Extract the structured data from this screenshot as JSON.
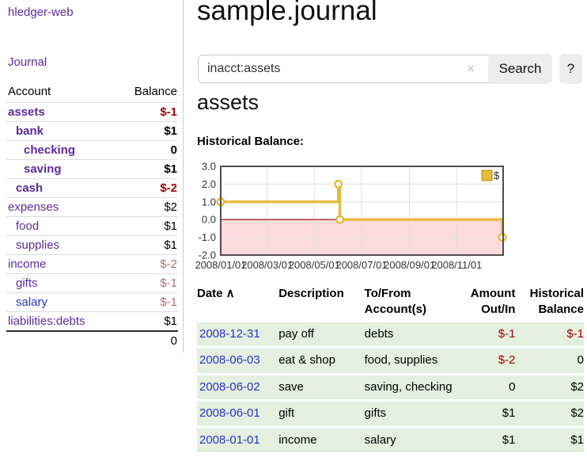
{
  "app": {
    "title": "hledger-web",
    "nav_journal": "Journal"
  },
  "sidebar": {
    "headers": {
      "account": "Account",
      "balance": "Balance"
    },
    "accounts": [
      {
        "name": "assets",
        "balance": "$-1",
        "indent": 1,
        "bold": true,
        "balance_class": "neg",
        "link_class": ""
      },
      {
        "name": "bank",
        "balance": "$1",
        "indent": 2,
        "bold": true,
        "balance_class": "",
        "link_class": ""
      },
      {
        "name": "checking",
        "balance": "0",
        "indent": 3,
        "bold": true,
        "balance_class": "",
        "link_class": ""
      },
      {
        "name": "saving",
        "balance": "$1",
        "indent": 3,
        "bold": true,
        "balance_class": "",
        "link_class": ""
      },
      {
        "name": "cash",
        "balance": "$-2",
        "indent": 2,
        "bold": true,
        "balance_class": "neg",
        "link_class": ""
      },
      {
        "name": "expenses",
        "balance": "$2",
        "indent": 1,
        "bold": false,
        "balance_class": "",
        "link_class": ""
      },
      {
        "name": "food",
        "balance": "$1",
        "indent": 2,
        "bold": false,
        "balance_class": "",
        "link_class": ""
      },
      {
        "name": "supplies",
        "balance": "$1",
        "indent": 2,
        "bold": false,
        "balance_class": "",
        "link_class": ""
      },
      {
        "name": "income",
        "balance": "$-2",
        "indent": 1,
        "bold": false,
        "balance_class": "negmuted",
        "link_class": ""
      },
      {
        "name": "gifts",
        "balance": "$-1",
        "indent": 2,
        "bold": false,
        "balance_class": "negmuted",
        "link_class": ""
      },
      {
        "name": "salary",
        "balance": "$-1",
        "indent": 2,
        "bold": false,
        "balance_class": "negmuted",
        "link_class": "blue"
      },
      {
        "name": "liabilities:debts",
        "balance": "$1",
        "indent": 1,
        "bold": false,
        "balance_class": "",
        "link_class": ""
      }
    ],
    "total": "0"
  },
  "main": {
    "title": "sample.journal",
    "search": {
      "value": "inacct:assets",
      "clear_icon": "×",
      "button_label": "Search",
      "help_label": "?"
    },
    "account_heading": "assets",
    "chart_label": "Historical Balance:"
  },
  "chart_data": {
    "type": "line",
    "title": "Historical Balance:",
    "step": true,
    "series": [
      {
        "name": "$",
        "x_days": [
          0,
          152,
          154,
          364
        ],
        "values": [
          1,
          2,
          0,
          -1
        ]
      }
    ],
    "x_range_days": [
      0,
      365
    ],
    "x_tick_days": [
      0,
      60,
      121,
      182,
      244,
      305
    ],
    "x_tick_labels": [
      "2008/01/01",
      "2008/03/01",
      "2008/05/01",
      "2008/07/01",
      "2008/09/01",
      "2008/11/01"
    ],
    "y_ticks": [
      3.0,
      2.0,
      1.0,
      0.0,
      -1.0,
      -2.0
    ],
    "y_tick_labels": [
      "3.0",
      "2.0",
      "1.0",
      "0.0",
      "-1.0",
      "-2.0"
    ],
    "ylim": [
      -2,
      3
    ],
    "grid": true,
    "legend": {
      "label": "$",
      "position": "top-right"
    },
    "colors": {
      "line": "#e7ba3a",
      "marker_fill": "#ffffff",
      "negative_region": "#fbdbdb",
      "zero_line": "#8b0000",
      "border": "#4d4d4d",
      "gridline": "#e0e0e0",
      "legend_swatch": "#e9bb3d",
      "legend_swatch_border": "#b8860b"
    }
  },
  "transactions": {
    "headers": [
      {
        "label": "Date",
        "sort_icon": "∧",
        "align": "left"
      },
      {
        "label": "Description",
        "align": "left"
      },
      {
        "label": "To/From Account(s)",
        "align": "left"
      },
      {
        "label": "Amount Out/In",
        "align": "right"
      },
      {
        "label": "Historical Balance",
        "align": "right"
      }
    ],
    "rows": [
      {
        "date": "2008-12-31",
        "description": "pay off",
        "accounts": "debts",
        "amount": "$-1",
        "amount_class": "neg",
        "balance": "$-1",
        "balance_class": "neg"
      },
      {
        "date": "2008-06-03",
        "description": "eat & shop",
        "accounts": "food, supplies",
        "amount": "$-2",
        "amount_class": "neg",
        "balance": "0",
        "balance_class": ""
      },
      {
        "date": "2008-06-02",
        "description": "save",
        "accounts": "saving, checking",
        "amount": "0",
        "amount_class": "",
        "balance": "$2",
        "balance_class": ""
      },
      {
        "date": "2008-06-01",
        "description": "gift",
        "accounts": "gifts",
        "amount": "$1",
        "amount_class": "",
        "balance": "$2",
        "balance_class": ""
      },
      {
        "date": "2008-01-01",
        "description": "income",
        "accounts": "salary",
        "amount": "$1",
        "amount_class": "",
        "balance": "$1",
        "balance_class": ""
      }
    ]
  }
}
